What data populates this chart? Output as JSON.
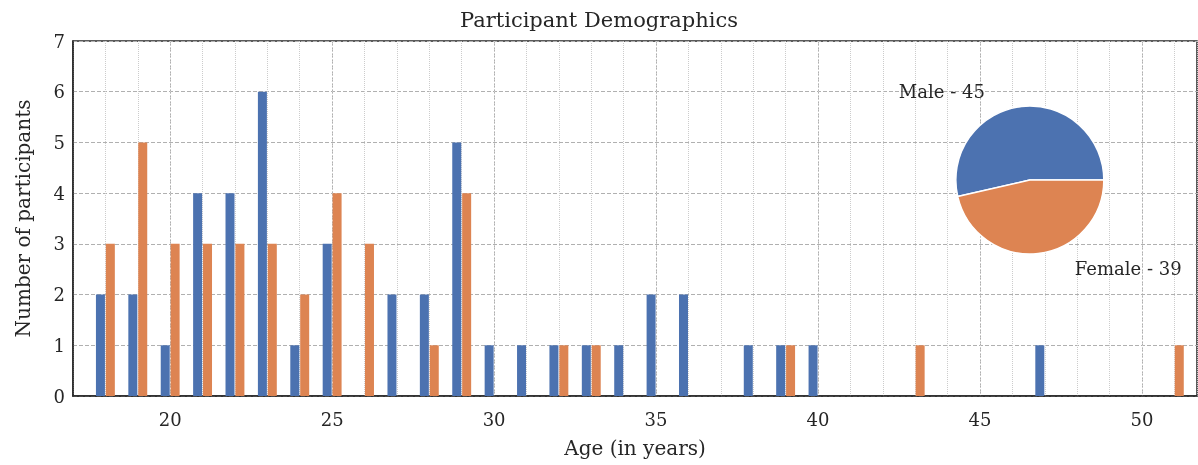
{
  "chart_data": [
    {
      "type": "bar",
      "title": "Participant Demographics",
      "xlabel": "Age (in years)",
      "ylabel": "Number of participants",
      "x": [
        18,
        19,
        20,
        21,
        22,
        23,
        24,
        25,
        26,
        27,
        28,
        29,
        30,
        31,
        32,
        33,
        34,
        35,
        36,
        38,
        39,
        40,
        43,
        47,
        51
      ],
      "series": [
        {
          "color": "#4c72b0",
          "values": [
            2,
            2,
            1,
            4,
            4,
            6,
            1,
            3,
            null,
            2,
            2,
            5,
            1,
            1,
            1,
            1,
            1,
            2,
            2,
            1,
            1,
            1,
            null,
            1,
            null
          ]
        },
        {
          "color": "#dd8452",
          "values": [
            3,
            5,
            3,
            3,
            3,
            3,
            2,
            4,
            3,
            null,
            1,
            4,
            null,
            null,
            1,
            1,
            null,
            null,
            null,
            null,
            1,
            null,
            1,
            null,
            1
          ]
        }
      ],
      "xlim": [
        17,
        51.7
      ],
      "xticks": [
        20,
        25,
        30,
        35,
        40,
        45,
        50
      ],
      "ylim": [
        0,
        7
      ],
      "yticks": [
        0,
        1,
        2,
        3,
        4,
        5,
        6,
        7
      ],
      "grid": true
    },
    {
      "type": "pie",
      "categories": [
        "Male - 45",
        "Female - 39"
      ],
      "values": [
        53.57,
        46.43
      ],
      "colors": [
        "#4c72b0",
        "#dd8452"
      ]
    }
  ]
}
